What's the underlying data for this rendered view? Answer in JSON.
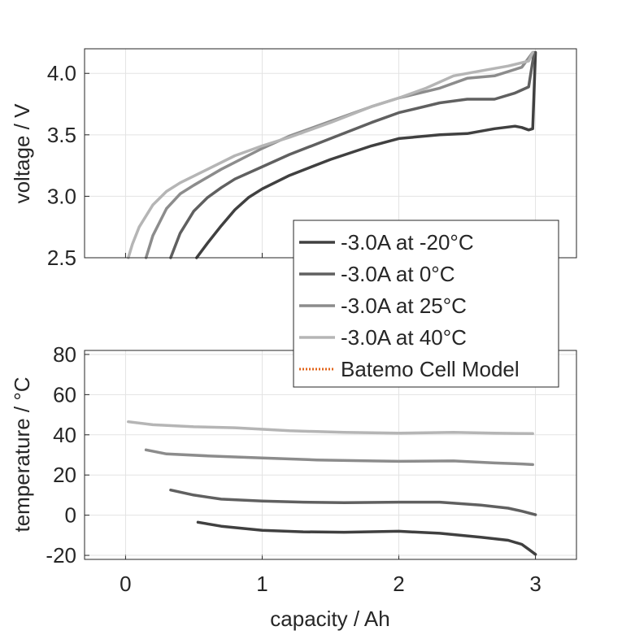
{
  "chart_data": [
    {
      "type": "line",
      "ylabel": "voltage / V",
      "xlim": [
        -0.3,
        3.3
      ],
      "ylim": [
        2.5,
        4.2
      ],
      "xticks": [
        0,
        1,
        2,
        3
      ],
      "yticks": [
        2.5,
        3.0,
        3.5,
        4.0
      ],
      "ytick_labels": [
        "2.5",
        "3.0",
        "3.5",
        "4.0"
      ],
      "grid": true,
      "series": [
        {
          "name": "-3.0A at -20°C",
          "color": "#404040",
          "x": [
            0.52,
            0.6,
            0.7,
            0.8,
            0.9,
            1.0,
            1.2,
            1.5,
            1.8,
            2.0,
            2.3,
            2.5,
            2.7,
            2.85,
            2.9,
            2.95,
            2.98,
            3.0
          ],
          "y": [
            2.5,
            2.62,
            2.76,
            2.89,
            2.99,
            3.06,
            3.17,
            3.3,
            3.41,
            3.47,
            3.5,
            3.51,
            3.55,
            3.57,
            3.56,
            3.54,
            3.55,
            4.17
          ]
        },
        {
          "name": "-3.0A at 0°C",
          "color": "#606060",
          "x": [
            0.33,
            0.4,
            0.5,
            0.6,
            0.7,
            0.8,
            1.0,
            1.2,
            1.5,
            1.8,
            2.0,
            2.3,
            2.5,
            2.7,
            2.85,
            2.95,
            2.99
          ],
          "y": [
            2.5,
            2.7,
            2.88,
            2.99,
            3.07,
            3.14,
            3.24,
            3.34,
            3.47,
            3.6,
            3.68,
            3.76,
            3.79,
            3.79,
            3.84,
            3.89,
            4.17
          ]
        },
        {
          "name": "-3.0A at 25°C",
          "color": "#8c8c8c",
          "x": [
            0.15,
            0.2,
            0.3,
            0.4,
            0.5,
            0.7,
            1.0,
            1.2,
            1.5,
            1.8,
            2.0,
            2.3,
            2.5,
            2.7,
            2.9,
            2.98
          ],
          "y": [
            2.5,
            2.68,
            2.9,
            3.02,
            3.09,
            3.22,
            3.39,
            3.49,
            3.61,
            3.73,
            3.8,
            3.88,
            3.96,
            3.98,
            4.05,
            4.17
          ]
        },
        {
          "name": "-3.0A at 40°C",
          "color": "#b5b5b5",
          "x": [
            0.02,
            0.05,
            0.1,
            0.2,
            0.3,
            0.4,
            0.6,
            0.8,
            1.0,
            1.2,
            1.5,
            1.8,
            2.0,
            2.2,
            2.4,
            2.6,
            2.8,
            2.95,
            2.98
          ],
          "y": [
            2.5,
            2.61,
            2.75,
            2.93,
            3.04,
            3.11,
            3.22,
            3.33,
            3.41,
            3.48,
            3.6,
            3.73,
            3.8,
            3.88,
            3.98,
            4.02,
            4.06,
            4.1,
            4.17
          ]
        }
      ]
    },
    {
      "type": "line",
      "xlabel": "capacity / Ah",
      "ylabel": "temperature / °C",
      "xlim": [
        -0.3,
        3.3
      ],
      "ylim": [
        -22,
        82
      ],
      "xticks": [
        0,
        1,
        2,
        3
      ],
      "xtick_labels": [
        "0",
        "1",
        "2",
        "3"
      ],
      "yticks": [
        -20,
        0,
        20,
        40,
        60,
        80
      ],
      "ytick_labels": [
        "-20",
        "0",
        "20",
        "40",
        "60",
        "80"
      ],
      "grid": true,
      "series": [
        {
          "name": "-3.0A at -20°C",
          "color": "#404040",
          "x": [
            0.53,
            0.7,
            1.0,
            1.3,
            1.6,
            2.0,
            2.3,
            2.6,
            2.8,
            2.9,
            2.95,
            3.0
          ],
          "y": [
            -3.5,
            -5.5,
            -7.5,
            -8.3,
            -8.5,
            -8.0,
            -9.0,
            -11.0,
            -12.5,
            -14.5,
            -17.0,
            -19.5
          ]
        },
        {
          "name": "-3.0A at 0°C",
          "color": "#606060",
          "x": [
            0.33,
            0.5,
            0.7,
            1.0,
            1.3,
            1.6,
            2.0,
            2.3,
            2.6,
            2.8,
            2.9,
            3.0
          ],
          "y": [
            12.5,
            10.0,
            8.0,
            7.0,
            6.5,
            6.2,
            6.5,
            6.5,
            5.0,
            3.5,
            2.0,
            0.2
          ]
        },
        {
          "name": "-3.0A at 25°C",
          "color": "#8c8c8c",
          "x": [
            0.15,
            0.3,
            0.6,
            1.0,
            1.4,
            1.8,
            2.0,
            2.4,
            2.7,
            2.9,
            2.98
          ],
          "y": [
            32.5,
            30.5,
            29.5,
            28.5,
            27.5,
            27.0,
            26.8,
            27.0,
            26.0,
            25.5,
            25.2
          ]
        },
        {
          "name": "-3.0A at 40°C",
          "color": "#b5b5b5",
          "x": [
            0.02,
            0.2,
            0.5,
            0.8,
            1.2,
            1.6,
            2.0,
            2.4,
            2.7,
            2.98
          ],
          "y": [
            46.5,
            45.0,
            44.0,
            43.5,
            42.0,
            41.2,
            40.8,
            41.2,
            40.8,
            40.6
          ]
        }
      ]
    }
  ],
  "legend": {
    "placement": "between-axes-right",
    "entries": [
      {
        "label": "-3.0A at -20°C",
        "color": "#404040",
        "style": "solid"
      },
      {
        "label": "-3.0A at 0°C",
        "color": "#606060",
        "style": "solid"
      },
      {
        "label": "-3.0A at 25°C",
        "color": "#8c8c8c",
        "style": "solid"
      },
      {
        "label": "-3.0A at 40°C",
        "color": "#b5b5b5",
        "style": "solid"
      },
      {
        "label": "Batemo Cell Model",
        "color": "#e2661c",
        "style": "dotted"
      }
    ]
  }
}
